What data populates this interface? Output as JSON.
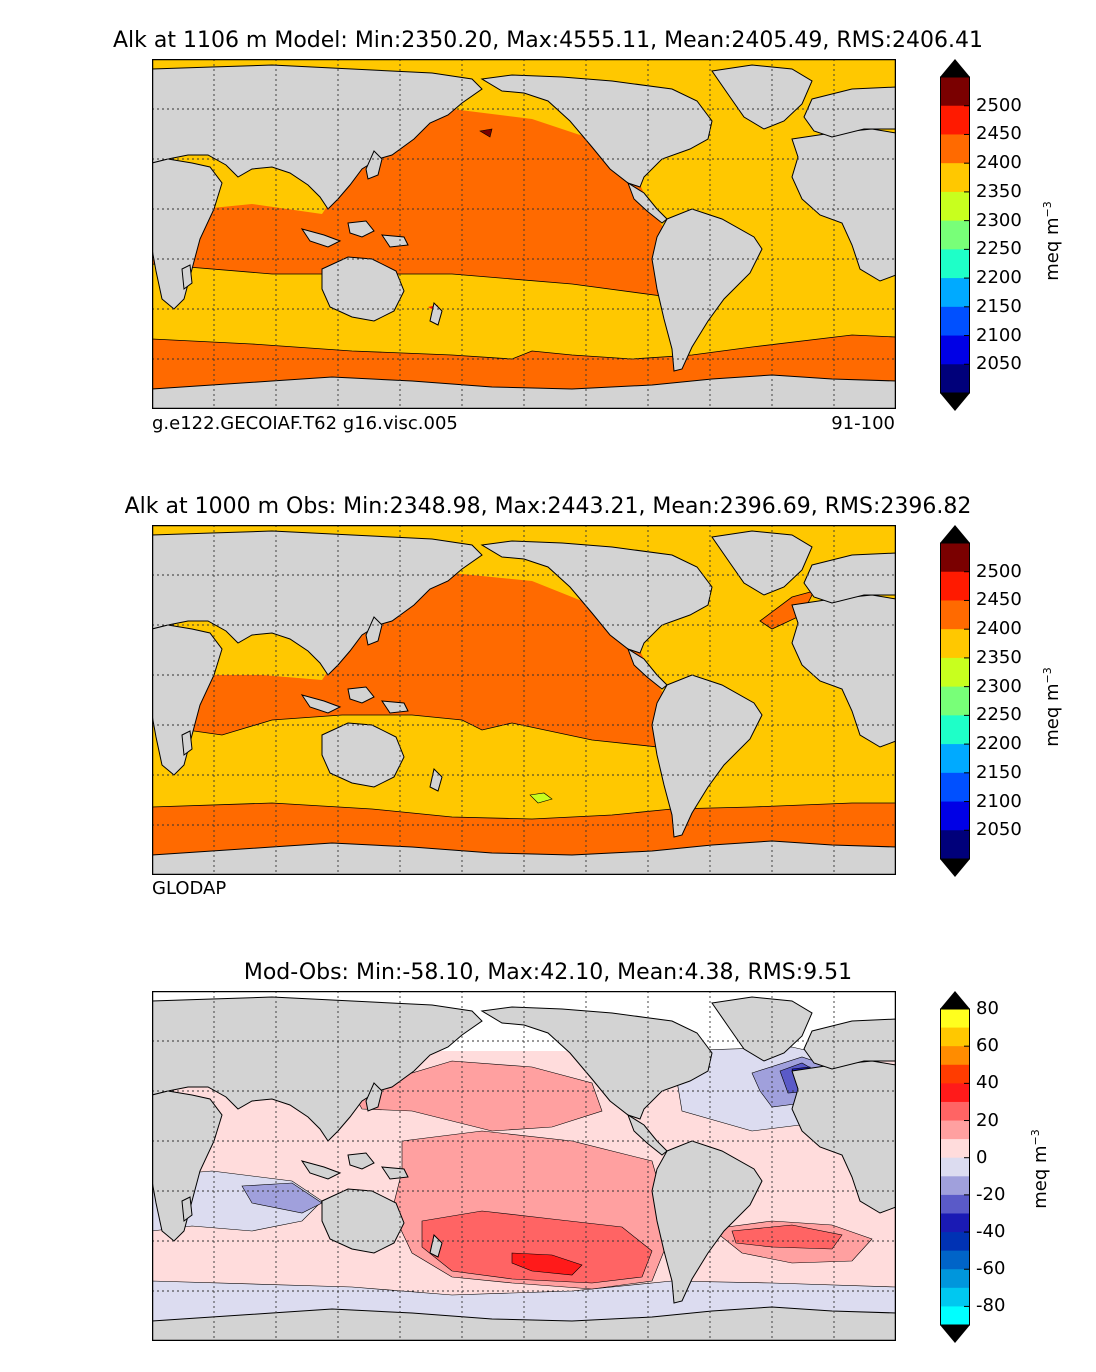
{
  "panels": [
    {
      "title": "Alk at 1106 m Model: Min:2350.20, Max:4555.11, Mean:2405.49, RMS:2406.41",
      "subtitle_left": "g.e122.GECOIAF.T62 g16.visc.005",
      "subtitle_right": "91-100",
      "units": "meq m",
      "units_exp": "−3",
      "colorbar_ticks": [
        "2500",
        "2450",
        "2400",
        "2350",
        "2300",
        "2250",
        "2200",
        "2150",
        "2100",
        "2050"
      ],
      "colorbar_colors": [
        "#7a0000",
        "#ff1a00",
        "#ff6a00",
        "#ffc800",
        "#c8ff1e",
        "#78ff78",
        "#1effc8",
        "#00aaff",
        "#0050ff",
        "#0000e6",
        "#00007a"
      ]
    },
    {
      "title": "Alk at 1000 m Obs: Min:2348.98, Max:2443.21, Mean:2396.69, RMS:2396.82",
      "subtitle_left": "GLODAP",
      "subtitle_right": "",
      "units": "meq m",
      "units_exp": "−3",
      "colorbar_ticks": [
        "2500",
        "2450",
        "2400",
        "2350",
        "2300",
        "2250",
        "2200",
        "2150",
        "2100",
        "2050"
      ],
      "colorbar_colors": [
        "#7a0000",
        "#ff1a00",
        "#ff6a00",
        "#ffc800",
        "#c8ff1e",
        "#78ff78",
        "#1effc8",
        "#00aaff",
        "#0050ff",
        "#0000e6",
        "#00007a"
      ]
    },
    {
      "title": "Mod-Obs: Min:-58.10, Max:42.10, Mean:4.38, RMS:9.51",
      "subtitle_left": "",
      "subtitle_right": "",
      "units": "meq m",
      "units_exp": "−3",
      "colorbar_ticks": [
        "80",
        "60",
        "40",
        "20",
        "0",
        "-20",
        "-40",
        "-60",
        "-80"
      ],
      "colorbar_colors": [
        "#ffff1e",
        "#ffc800",
        "#ff8c00",
        "#ff3c00",
        "#ff1a1a",
        "#ff6464",
        "#ffa0a0",
        "#ffdcdc",
        "#dcdcf0",
        "#a0a0dc",
        "#5a5ac8",
        "#1a1ab4",
        "#0032b4",
        "#0064c8",
        "#0096dc",
        "#00c8f0",
        "#00ffff"
      ]
    }
  ],
  "chart_data": [
    {
      "type": "heatmap",
      "title": "Alk at 1106 m Model: Min:2350.20, Max:4555.11, Mean:2405.49, RMS:2406.41",
      "variable": "Alk",
      "depth_m": 1106,
      "source": "Model",
      "stats": {
        "min": 2350.2,
        "max": 4555.11,
        "mean": 2405.49,
        "rms": 2406.41
      },
      "colorbar": {
        "ticks": [
          2500,
          2450,
          2400,
          2350,
          2300,
          2250,
          2200,
          2150,
          2100,
          2050
        ],
        "units": "meq m^-3"
      },
      "case": "g.e122.GECOIAF.T62 g16.visc.005",
      "years": "91-100"
    },
    {
      "type": "heatmap",
      "title": "Alk at 1000 m Obs: Min:2348.98, Max:2443.21, Mean:2396.69, RMS:2396.82",
      "variable": "Alk",
      "depth_m": 1000,
      "source": "Obs",
      "stats": {
        "min": 2348.98,
        "max": 2443.21,
        "mean": 2396.69,
        "rms": 2396.82
      },
      "colorbar": {
        "ticks": [
          2500,
          2450,
          2400,
          2350,
          2300,
          2250,
          2200,
          2150,
          2100,
          2050
        ],
        "units": "meq m^-3"
      },
      "dataset": "GLODAP"
    },
    {
      "type": "heatmap",
      "title": "Mod-Obs: Min:-58.10, Max:42.10, Mean:4.38, RMS:9.51",
      "source": "Mod-Obs",
      "stats": {
        "min": -58.1,
        "max": 42.1,
        "mean": 4.38,
        "rms": 9.51
      },
      "colorbar": {
        "ticks": [
          80,
          60,
          40,
          20,
          0,
          -20,
          -40,
          -60,
          -80
        ],
        "units": "meq m^-3"
      }
    }
  ]
}
